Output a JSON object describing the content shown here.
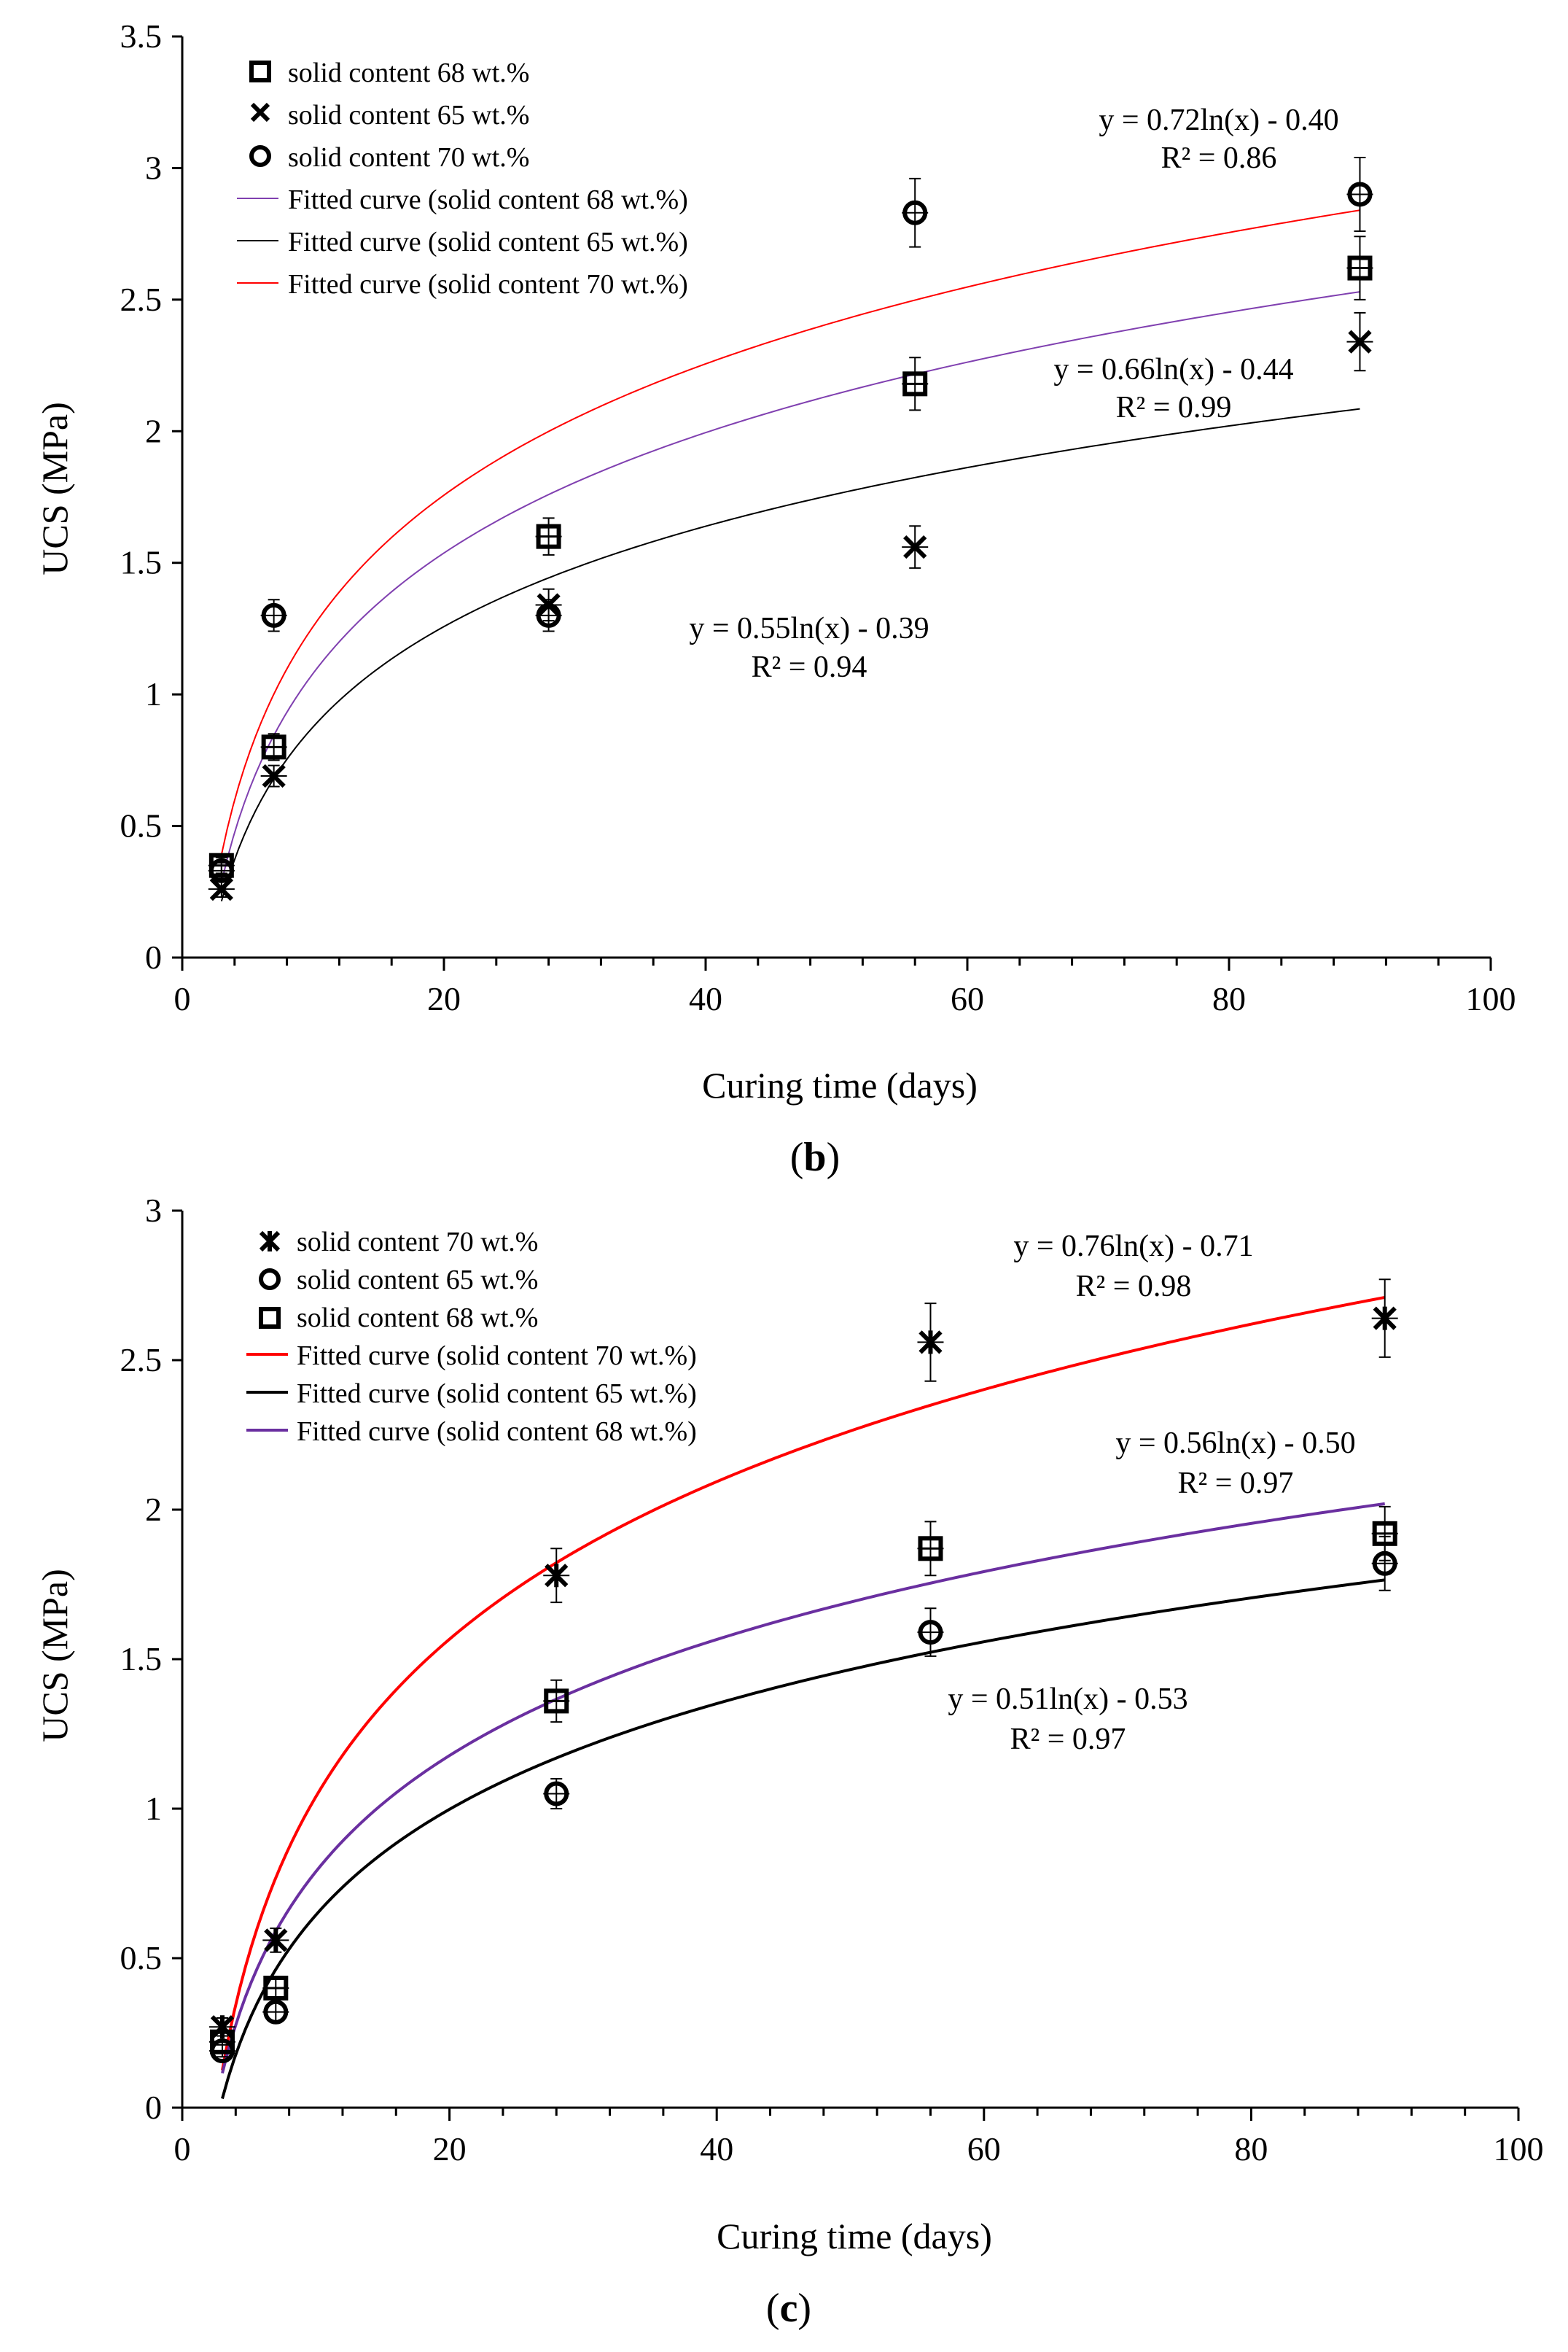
{
  "charts": [
    {
      "caption": {
        "open": "(",
        "letter": "b",
        "close": ")"
      },
      "legend": [
        {
          "label": "solid content 68 wt.%",
          "marker": "square"
        },
        {
          "label": "solid content 65 wt.%",
          "marker": "cross"
        },
        {
          "label": "solid content 70 wt.%",
          "marker": "circle"
        },
        {
          "label": "Fitted curve (solid content 68 wt.%)",
          "color": "#8040b0"
        },
        {
          "label": "Fitted curve (solid content 65 wt.%)",
          "color": "#000000"
        },
        {
          "label": "Fitted curve (solid content 70 wt.%)",
          "color": "#ff0000"
        }
      ],
      "annotations": [
        {
          "eq": "y = 0.72ln(x) - 0.40",
          "r2": "R² = 0.86"
        },
        {
          "eq": "y = 0.66ln(x) - 0.44",
          "r2": "R² = 0.99"
        },
        {
          "eq": "y = 0.55ln(x) - 0.39",
          "r2": "R² = 0.94"
        }
      ]
    },
    {
      "caption": {
        "open": "(",
        "letter": "c",
        "close": ")"
      },
      "legend": [
        {
          "label": "solid content 70 wt.%",
          "marker": "star"
        },
        {
          "label": "solid content 65 wt.%",
          "marker": "circle"
        },
        {
          "label": "solid content 68 wt.%",
          "marker": "square"
        },
        {
          "label": "Fitted curve (solid content 70 wt.%)",
          "color": "#ff0000"
        },
        {
          "label": "Fitted curve (solid content 65 wt.%)",
          "color": "#000000"
        },
        {
          "label": "Fitted curve (solid content 68 wt.%)",
          "color": "#6a2fa0"
        }
      ],
      "annotations": [
        {
          "eq": "y = 0.76ln(x) - 0.71",
          "r2": "R² = 0.98"
        },
        {
          "eq": "y = 0.56ln(x) - 0.50",
          "r2": "R² = 0.97"
        },
        {
          "eq": "y = 0.51ln(x) - 0.53",
          "r2": "R² = 0.97"
        }
      ]
    }
  ],
  "chart_data": [
    {
      "type": "scatter",
      "title": "",
      "caption": "(b)",
      "xlabel": "Curing time (days)",
      "ylabel": "UCS (MPa)",
      "xlim": [
        0,
        100
      ],
      "ylim": [
        0,
        3.5
      ],
      "xticks": [
        0,
        20,
        40,
        60,
        80,
        100
      ],
      "yticks": [
        0,
        0.5,
        1,
        1.5,
        2,
        2.5,
        3,
        3.5
      ],
      "ytick_labels": [
        "0",
        "0.5",
        "1",
        "1.5",
        "2",
        "2.5",
        "3",
        "3.5"
      ],
      "series": [
        {
          "name": "solid content 68 wt.%",
          "marker": "square",
          "x": [
            3,
            7,
            28,
            56,
            90
          ],
          "y": [
            0.35,
            0.8,
            1.6,
            2.18,
            2.62
          ],
          "err": [
            0.03,
            0.05,
            0.07,
            0.1,
            0.12
          ]
        },
        {
          "name": "solid content 65 wt.%",
          "marker": "cross",
          "x": [
            3,
            7,
            28,
            56,
            90
          ],
          "y": [
            0.26,
            0.69,
            1.34,
            1.56,
            2.34
          ],
          "err": [
            0.03,
            0.04,
            0.06,
            0.08,
            0.11
          ]
        },
        {
          "name": "solid content 70 wt.%",
          "marker": "circle",
          "x": [
            3,
            7,
            28,
            56,
            90
          ],
          "y": [
            0.33,
            1.3,
            1.3,
            2.83,
            2.9
          ],
          "err": [
            0.03,
            0.06,
            0.06,
            0.13,
            0.14
          ]
        }
      ],
      "fits": [
        {
          "name": "Fitted curve (solid content 68 wt.%)",
          "a": 0.66,
          "b": -0.44,
          "xrange": [
            3,
            90
          ],
          "color": "#8040b0",
          "width": 2
        },
        {
          "name": "Fitted curve (solid content 65 wt.%)",
          "a": 0.55,
          "b": -0.39,
          "xrange": [
            3,
            90
          ],
          "color": "#000000",
          "width": 2
        },
        {
          "name": "Fitted curve (solid content 70 wt.%)",
          "a": 0.72,
          "b": -0.4,
          "xrange": [
            3,
            90
          ],
          "color": "#ff0000",
          "width": 2
        }
      ]
    },
    {
      "type": "scatter",
      "title": "",
      "caption": "(c)",
      "xlabel": "Curing time (days)",
      "ylabel": "UCS (MPa)",
      "xlim": [
        0,
        100
      ],
      "ylim": [
        0,
        3
      ],
      "xticks": [
        0,
        20,
        40,
        60,
        80,
        100
      ],
      "yticks": [
        0,
        0.5,
        1,
        1.5,
        2,
        2.5,
        3
      ],
      "ytick_labels": [
        "0",
        "0.5",
        "1",
        "1.5",
        "2",
        "2.5",
        "3"
      ],
      "series": [
        {
          "name": "solid content 70 wt.%",
          "marker": "star",
          "x": [
            3,
            7,
            28,
            56,
            90
          ],
          "y": [
            0.27,
            0.56,
            1.78,
            2.56,
            2.64
          ],
          "err": [
            0.03,
            0.04,
            0.09,
            0.13,
            0.13
          ]
        },
        {
          "name": "solid content 65 wt.%",
          "marker": "circle",
          "x": [
            3,
            7,
            28,
            56,
            90
          ],
          "y": [
            0.19,
            0.32,
            1.05,
            1.59,
            1.82
          ],
          "err": [
            0.02,
            0.03,
            0.05,
            0.08,
            0.09
          ]
        },
        {
          "name": "solid content 68 wt.%",
          "marker": "square",
          "x": [
            3,
            7,
            28,
            56,
            90
          ],
          "y": [
            0.22,
            0.4,
            1.36,
            1.87,
            1.92
          ],
          "err": [
            0.03,
            0.03,
            0.07,
            0.09,
            0.09
          ]
        }
      ],
      "fits": [
        {
          "name": "Fitted curve (solid content 70 wt.%)",
          "a": 0.76,
          "b": -0.71,
          "xrange": [
            3,
            90
          ],
          "color": "#ff0000",
          "width": 4
        },
        {
          "name": "Fitted curve (solid content 65 wt.%)",
          "a": 0.51,
          "b": -0.53,
          "xrange": [
            3,
            90
          ],
          "color": "#000000",
          "width": 4
        },
        {
          "name": "Fitted curve (solid content 68 wt.%)",
          "a": 0.56,
          "b": -0.5,
          "xrange": [
            3,
            90
          ],
          "color": "#6a2fa0",
          "width": 4
        }
      ]
    }
  ]
}
